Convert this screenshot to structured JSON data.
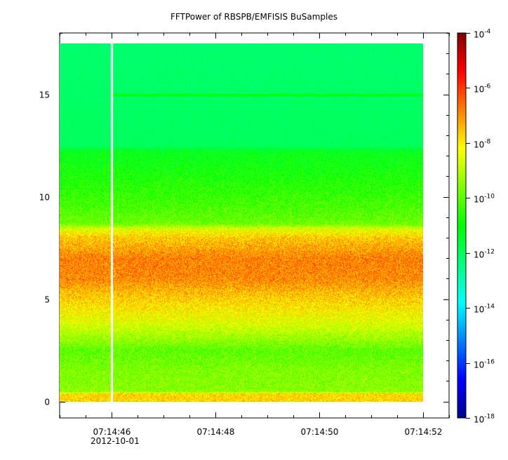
{
  "chart_data": {
    "type": "heatmap",
    "title": "FFTPower of RBSPB/EMFISIS  BuSamples",
    "xlabel": "",
    "ylabel": "",
    "x_ticks": [
      {
        "value": "07:14:46",
        "date": "2012-10-01"
      },
      {
        "value": "07:14:48"
      },
      {
        "value": "07:14:50"
      },
      {
        "value": "07:14:52"
      }
    ],
    "x_range": [
      "07:14:45.0",
      "07:14:52.5"
    ],
    "data_time_range": [
      "07:14:45.0",
      "07:14:52.0"
    ],
    "gap_time": "07:14:46.0",
    "y_ticks": [
      0,
      5,
      10,
      15
    ],
    "y_range": [
      -0.8,
      18.0
    ],
    "data_y_range": [
      0,
      17.5
    ],
    "colorbar": {
      "scale": "log",
      "range_exponents": [
        -18,
        -4
      ],
      "tick_exponents": [
        -18,
        -16,
        -14,
        -12,
        -10,
        -8,
        -6,
        -4
      ],
      "tick_labels": [
        {
          "base": "10",
          "exp": "-18"
        },
        {
          "base": "10",
          "exp": "-16"
        },
        {
          "base": "10",
          "exp": "-14"
        },
        {
          "base": "10",
          "exp": "-12"
        },
        {
          "base": "10",
          "exp": "-10"
        },
        {
          "base": "10",
          "exp": "-8"
        },
        {
          "base": "10",
          "exp": "-6"
        },
        {
          "base": "10",
          "exp": "-4"
        }
      ],
      "colormap": [
        "#00008f",
        "#0000ff",
        "#0080ff",
        "#00ffff",
        "#00ff80",
        "#00ff00",
        "#80ff00",
        "#ffff00",
        "#ff8000",
        "#ff0000",
        "#800000"
      ]
    },
    "power_profile_log10": [
      {
        "y": 0.0,
        "v": -7.8
      },
      {
        "y": 0.4,
        "v": -7.8
      },
      {
        "y": 0.5,
        "v": -9.5
      },
      {
        "y": 1.5,
        "v": -9.6
      },
      {
        "y": 2.5,
        "v": -10.0
      },
      {
        "y": 3.0,
        "v": -9.4
      },
      {
        "y": 4.0,
        "v": -8.4
      },
      {
        "y": 5.0,
        "v": -7.7
      },
      {
        "y": 6.0,
        "v": -6.9
      },
      {
        "y": 7.0,
        "v": -6.8
      },
      {
        "y": 8.0,
        "v": -7.6
      },
      {
        "y": 8.4,
        "v": -8.4
      },
      {
        "y": 8.7,
        "v": -9.8
      },
      {
        "y": 9.5,
        "v": -10.2
      },
      {
        "y": 11.0,
        "v": -10.8
      },
      {
        "y": 12.2,
        "v": -11.2
      },
      {
        "y": 12.5,
        "v": -12.0
      },
      {
        "y": 15.0,
        "v": -12.1
      },
      {
        "y": 17.5,
        "v": -12.2
      }
    ],
    "line_feature": {
      "y": 15.0,
      "v": -11.0
    }
  }
}
